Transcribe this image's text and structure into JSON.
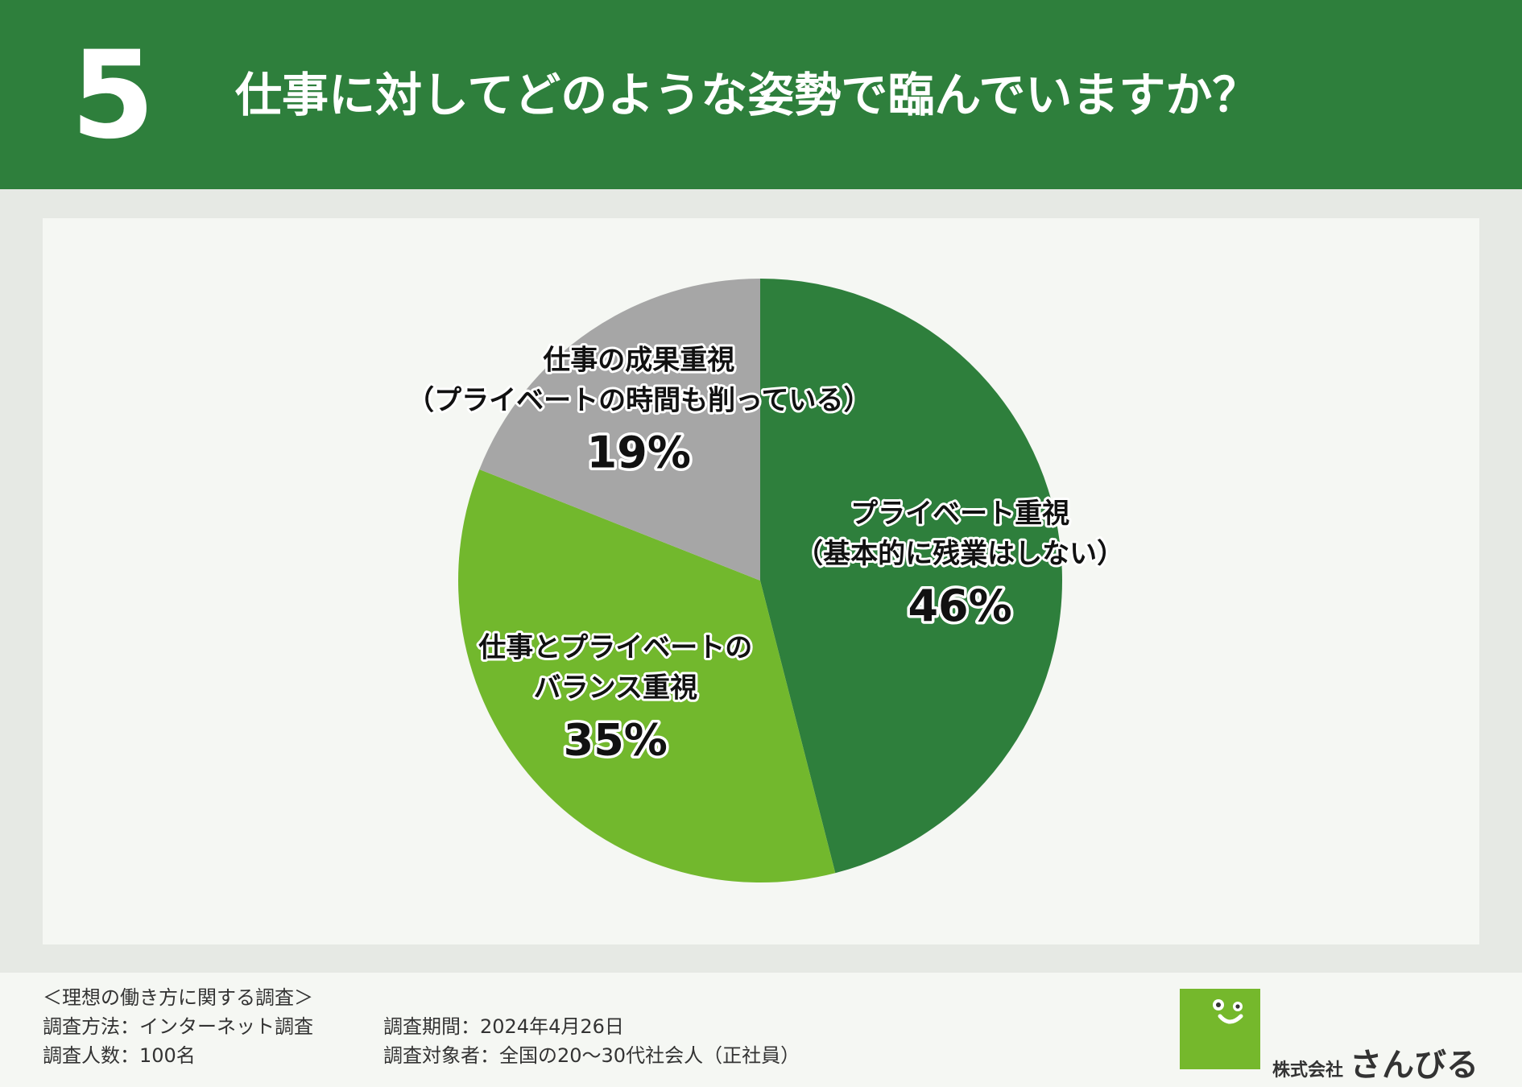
{
  "header": {
    "number": "5",
    "title": "仕事に対してどのような姿勢で臨んでいますか？"
  },
  "colors": {
    "header_bg": "#2e7f3c",
    "slice_dark_green": "#2e7f3c",
    "slice_light_green": "#72b82d",
    "slice_gray": "#a6a6a6"
  },
  "chart_data": {
    "type": "pie",
    "start_angle_deg": 0,
    "direction": "clockwise",
    "slices": [
      {
        "label": [
          "プライベート重視",
          "（基本的に残業はしない）"
        ],
        "value": 46,
        "value_label": "46%",
        "color": "#2e7f3c"
      },
      {
        "label": [
          "仕事とプライベートの",
          "バランス重視"
        ],
        "value": 35,
        "value_label": "35%",
        "color": "#72b82d"
      },
      {
        "label": [
          "仕事の成果重視",
          "（プライベートの時間も削っている）"
        ],
        "value": 19,
        "value_label": "19%",
        "color": "#a6a6a6"
      }
    ]
  },
  "footer": {
    "survey_title": "＜理想の働き方に関する調査＞",
    "method": "調査方法：インターネット調査",
    "respondents": "調査人数：100名",
    "period": "調査期間：2024年4月26日",
    "target": "調査対象者：全国の20〜30代社会人（正社員）",
    "logo_corp": "株式会社",
    "logo_brand": "さんびる"
  }
}
